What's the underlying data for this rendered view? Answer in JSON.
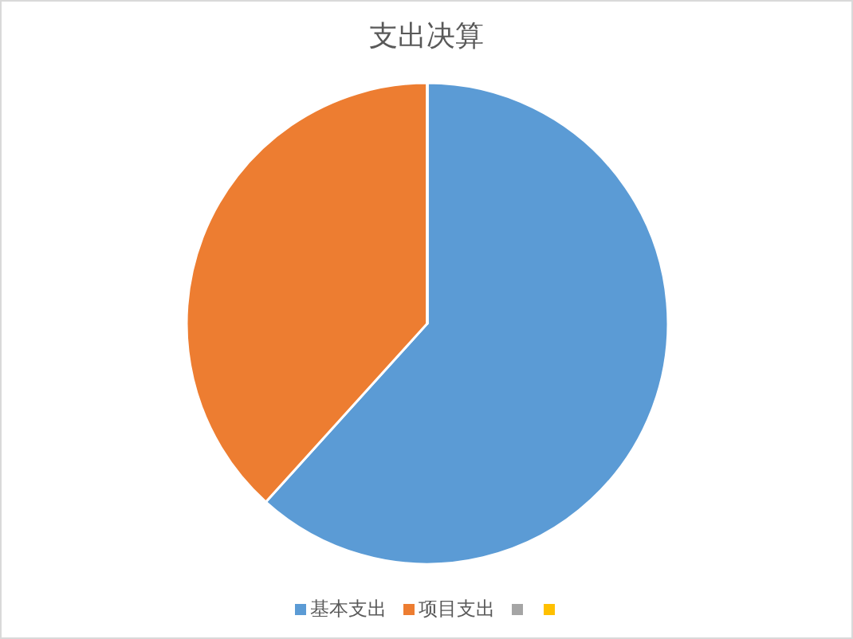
{
  "chart_data": {
    "type": "pie",
    "title": "支出决算",
    "categories": [
      "基本支出",
      "项目支出",
      null,
      null
    ],
    "values": [
      61.7,
      38.3,
      0,
      0
    ],
    "colors": [
      "#5b9bd5",
      "#ed7d31",
      "#a5a5a5",
      "#ffc000"
    ],
    "legend": "bottom"
  }
}
